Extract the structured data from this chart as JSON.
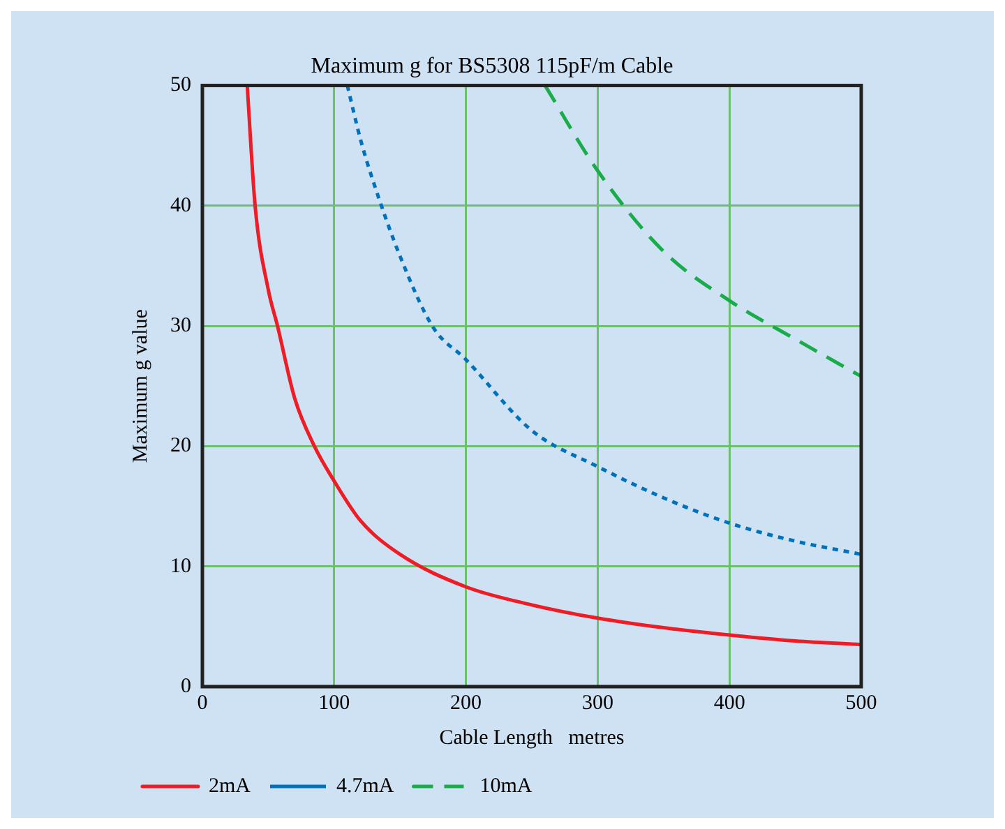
{
  "chart_data": {
    "type": "line",
    "title": "Maximum g for BS5308 115pF/m Cable",
    "xlabel": "Cable Length   metres",
    "ylabel": "Maximum g value",
    "xlim": [
      0,
      500
    ],
    "xticks": [
      0,
      100,
      200,
      300,
      400,
      500
    ],
    "ylim": [
      0,
      50
    ],
    "yticks": [
      0,
      10,
      20,
      30,
      40,
      50
    ],
    "grid": true,
    "legend": "bottom left",
    "marker": "none",
    "series": [
      {
        "name": "2mA",
        "color": "#ee1c25",
        "line_style": "solid",
        "x": [
          34,
          40,
          50,
          57,
          70,
          85,
          100,
          120,
          150,
          200,
          250,
          300,
          350,
          400,
          450,
          500
        ],
        "values": [
          50,
          40,
          33,
          30,
          24,
          20,
          17.1,
          13.8,
          11,
          8.3,
          6.8,
          5.7,
          4.9,
          4.3,
          3.8,
          3.5
        ]
      },
      {
        "name": "4.7mA",
        "color": "#0072bc",
        "line_style": "dotted",
        "x": [
          110,
          120,
          130,
          150,
          175,
          200,
          250,
          300,
          350,
          400,
          450,
          500
        ],
        "values": [
          50,
          45.5,
          41.9,
          35.8,
          29.9,
          27.2,
          21.3,
          18.3,
          15.7,
          13.6,
          12.1,
          11
        ]
      },
      {
        "name": "10mA",
        "color": "#1aab4a",
        "line_style": "dashed",
        "x": [
          260,
          300,
          350,
          400,
          450,
          500
        ],
        "values": [
          50,
          42.9,
          36.2,
          32.1,
          28.9,
          25.8
        ]
      }
    ]
  }
}
